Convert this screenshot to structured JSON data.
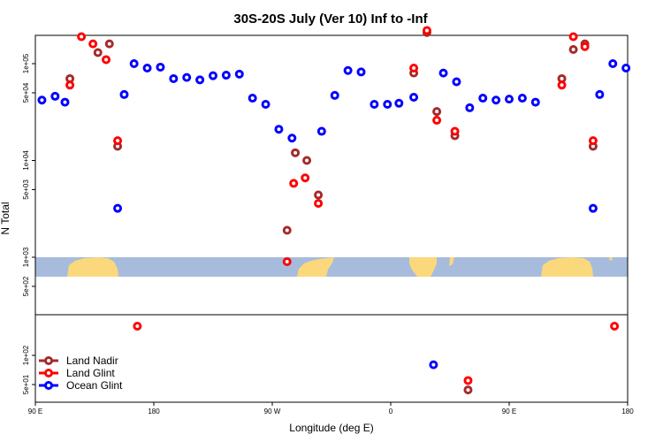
{
  "chart_data": {
    "type": "scatter",
    "title": "30S-20S July (Ver 10)   Inf to -Inf",
    "xlabel": "Longitude (deg E)",
    "ylabel": "N Total",
    "xlim": [
      90,
      450
    ],
    "x_ticks": [
      {
        "value": 90,
        "label": "90 E"
      },
      {
        "value": 162,
        "label": "180"
      },
      {
        "value": 234,
        "label": "90 W"
      },
      {
        "value": 306,
        "label": "0"
      },
      {
        "value": 378,
        "label": "90 E"
      },
      {
        "value": 450,
        "label": "180"
      }
    ],
    "upper_panel": {
      "scale": "log",
      "y_ticks": [
        {
          "value": 100000,
          "label": "1e+05"
        },
        {
          "value": 50000,
          "label": "5e+04"
        },
        {
          "value": 10000,
          "label": "1e+04"
        },
        {
          "value": 5000,
          "label": "5e+03"
        },
        {
          "value": 1000,
          "label": "1e+03"
        },
        {
          "value": 500,
          "label": "5e+02"
        }
      ]
    },
    "lower_panel": {
      "scale": "log",
      "y_ticks": [
        {
          "value": 100,
          "label": "1e+02"
        },
        {
          "value": 50,
          "label": "5e+01"
        }
      ]
    },
    "legend": {
      "position": "bottom-left"
    },
    "series": [
      {
        "name": "Land Nadir",
        "color": "#a52a2a",
        "points": [
          {
            "x": 111,
            "y": 70000,
            "panel": "upper"
          },
          {
            "x": 128,
            "y": 130000,
            "panel": "upper"
          },
          {
            "x": 135,
            "y": 160000,
            "panel": "upper"
          },
          {
            "x": 140,
            "y": 14000,
            "panel": "upper"
          },
          {
            "x": 243,
            "y": 1900,
            "panel": "upper"
          },
          {
            "x": 248,
            "y": 12000,
            "panel": "upper"
          },
          {
            "x": 255,
            "y": 10000,
            "panel": "upper"
          },
          {
            "x": 262,
            "y": 4400,
            "panel": "upper"
          },
          {
            "x": 320,
            "y": 80000,
            "panel": "upper"
          },
          {
            "x": 328,
            "y": 210000,
            "panel": "upper"
          },
          {
            "x": 334,
            "y": 32000,
            "panel": "upper"
          },
          {
            "x": 345,
            "y": 18000,
            "panel": "upper"
          },
          {
            "x": 353,
            "y": 44,
            "panel": "lower"
          },
          {
            "x": 410,
            "y": 70000,
            "panel": "upper"
          },
          {
            "x": 417,
            "y": 140000,
            "panel": "upper"
          },
          {
            "x": 424,
            "y": 160000,
            "panel": "upper"
          },
          {
            "x": 429,
            "y": 14000,
            "panel": "upper"
          }
        ]
      },
      {
        "name": "Land Glint",
        "color": "#ff0000",
        "points": [
          {
            "x": 111,
            "y": 60000,
            "panel": "upper"
          },
          {
            "x": 118,
            "y": 190000,
            "panel": "upper"
          },
          {
            "x": 125,
            "y": 160000,
            "panel": "upper"
          },
          {
            "x": 133,
            "y": 110000,
            "panel": "upper"
          },
          {
            "x": 140,
            "y": 16000,
            "panel": "upper"
          },
          {
            "x": 152,
            "y": 200,
            "panel": "lower"
          },
          {
            "x": 243,
            "y": 900,
            "panel": "upper"
          },
          {
            "x": 247,
            "y": 5800,
            "panel": "upper"
          },
          {
            "x": 254,
            "y": 6600,
            "panel": "upper"
          },
          {
            "x": 262,
            "y": 3600,
            "panel": "upper"
          },
          {
            "x": 320,
            "y": 90000,
            "panel": "upper"
          },
          {
            "x": 328,
            "y": 220000,
            "panel": "upper"
          },
          {
            "x": 334,
            "y": 26000,
            "panel": "upper"
          },
          {
            "x": 345,
            "y": 20000,
            "panel": "upper"
          },
          {
            "x": 353,
            "y": 55,
            "panel": "lower"
          },
          {
            "x": 410,
            "y": 60000,
            "panel": "upper"
          },
          {
            "x": 417,
            "y": 190000,
            "panel": "upper"
          },
          {
            "x": 424,
            "y": 150000,
            "panel": "upper"
          },
          {
            "x": 429,
            "y": 16000,
            "panel": "upper"
          },
          {
            "x": 442,
            "y": 200,
            "panel": "lower"
          }
        ]
      },
      {
        "name": "Ocean Glint",
        "color": "#0000ff",
        "points": [
          {
            "x": 94,
            "y": 42000,
            "panel": "upper"
          },
          {
            "x": 102,
            "y": 46000,
            "panel": "upper"
          },
          {
            "x": 108,
            "y": 40000,
            "panel": "upper"
          },
          {
            "x": 140,
            "y": 3200,
            "panel": "upper"
          },
          {
            "x": 144,
            "y": 48000,
            "panel": "upper"
          },
          {
            "x": 150,
            "y": 100000,
            "panel": "upper"
          },
          {
            "x": 158,
            "y": 90000,
            "panel": "upper"
          },
          {
            "x": 166,
            "y": 92000,
            "panel": "upper"
          },
          {
            "x": 174,
            "y": 70000,
            "panel": "upper"
          },
          {
            "x": 182,
            "y": 72000,
            "panel": "upper"
          },
          {
            "x": 190,
            "y": 68000,
            "panel": "upper"
          },
          {
            "x": 198,
            "y": 75000,
            "panel": "upper"
          },
          {
            "x": 206,
            "y": 76000,
            "panel": "upper"
          },
          {
            "x": 214,
            "y": 78000,
            "panel": "upper"
          },
          {
            "x": 222,
            "y": 44000,
            "panel": "upper"
          },
          {
            "x": 230,
            "y": 38000,
            "panel": "upper"
          },
          {
            "x": 238,
            "y": 21000,
            "panel": "upper"
          },
          {
            "x": 246,
            "y": 17000,
            "panel": "upper"
          },
          {
            "x": 264,
            "y": 20000,
            "panel": "upper"
          },
          {
            "x": 272,
            "y": 47000,
            "panel": "upper"
          },
          {
            "x": 280,
            "y": 85000,
            "panel": "upper"
          },
          {
            "x": 288,
            "y": 82000,
            "panel": "upper"
          },
          {
            "x": 296,
            "y": 38000,
            "panel": "upper"
          },
          {
            "x": 304,
            "y": 38000,
            "panel": "upper"
          },
          {
            "x": 311,
            "y": 39000,
            "panel": "upper"
          },
          {
            "x": 332,
            "y": 80,
            "panel": "lower"
          },
          {
            "x": 320,
            "y": 45000,
            "panel": "upper"
          },
          {
            "x": 338,
            "y": 80000,
            "panel": "upper"
          },
          {
            "x": 346,
            "y": 65000,
            "panel": "upper"
          },
          {
            "x": 354,
            "y": 35000,
            "panel": "upper"
          },
          {
            "x": 362,
            "y": 44000,
            "panel": "upper"
          },
          {
            "x": 370,
            "y": 42000,
            "panel": "upper"
          },
          {
            "x": 378,
            "y": 43000,
            "panel": "upper"
          },
          {
            "x": 386,
            "y": 44000,
            "panel": "upper"
          },
          {
            "x": 394,
            "y": 40000,
            "panel": "upper"
          },
          {
            "x": 429,
            "y": 3200,
            "panel": "upper"
          },
          {
            "x": 433,
            "y": 48000,
            "panel": "upper"
          },
          {
            "x": 441,
            "y": 100000,
            "panel": "upper"
          },
          {
            "x": 449,
            "y": 90000,
            "panel": "upper"
          }
        ]
      }
    ]
  }
}
